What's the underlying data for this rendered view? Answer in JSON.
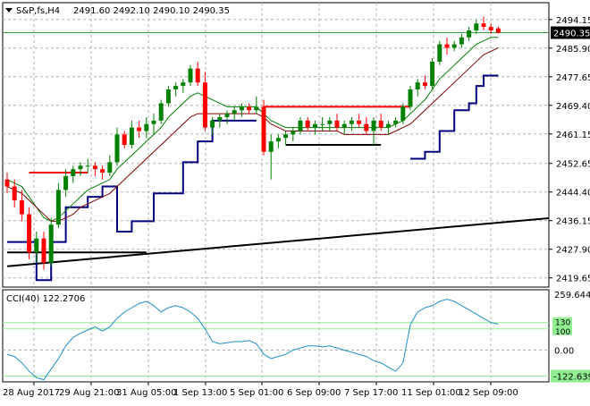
{
  "header": {
    "symbol": "S&P,fs,H4",
    "ohlc": "2491.60 2492.10 2490.10 2490.35"
  },
  "price_axis": {
    "ticks": [
      "2494.15",
      "2485.90",
      "2477.65",
      "2469.40",
      "2461.15",
      "2452.65",
      "2444.40",
      "2436.15",
      "2427.90",
      "2419.65"
    ],
    "current_price": "2490.35"
  },
  "cci_panel": {
    "label": "CCI(40) 122.2706",
    "ticks": [
      "259.6446",
      "0.00",
      "-122.6397"
    ],
    "level_labels": [
      "130",
      "100"
    ]
  },
  "time_axis": {
    "labels": [
      "28 Aug 2017",
      "29 Aug 21:00",
      "31 Aug 05:00",
      "1 Sep 13:00",
      "5 Sep 01:00",
      "6 Sep 09:00",
      "7 Sep 17:00",
      "11 Sep 01:00",
      "12 Sep 09:00"
    ]
  },
  "colors": {
    "bull": "#008000",
    "bear": "#ff0000",
    "ma_fast": "#008000",
    "ma_slow": "#800000",
    "stop_line": "#000080",
    "trend_line": "#000000",
    "resistance": "#ff0000",
    "support": "#000000",
    "cci": "#1e90c8",
    "levels": "#90ee90",
    "grid": "#b0b0b0"
  },
  "chart_data": [
    {
      "type": "candlestick",
      "title": "S&P,fs,H4",
      "ylim": [
        2417,
        2499
      ],
      "grid": true,
      "candles": [
        [
          2448,
          2450,
          2444,
          2446
        ],
        [
          2446,
          2448,
          2440,
          2442
        ],
        [
          2442,
          2445,
          2436,
          2438
        ],
        [
          2438,
          2440,
          2425,
          2427
        ],
        [
          2427,
          2433,
          2424,
          2431
        ],
        [
          2431,
          2433,
          2422,
          2424
        ],
        [
          2424,
          2437,
          2423,
          2435
        ],
        [
          2435,
          2447,
          2434,
          2445
        ],
        [
          2445,
          2451,
          2443,
          2449
        ],
        [
          2449,
          2452,
          2447,
          2451
        ],
        [
          2451,
          2453,
          2449,
          2452
        ],
        [
          2452,
          2454,
          2450,
          2452
        ],
        [
          2452,
          2453,
          2449,
          2451
        ],
        [
          2451,
          2452,
          2448,
          2450
        ],
        [
          2450,
          2455,
          2449,
          2453
        ],
        [
          2453,
          2463,
          2452,
          2461
        ],
        [
          2461,
          2462,
          2457,
          2458
        ],
        [
          2458,
          2465,
          2457,
          2463
        ],
        [
          2463,
          2465,
          2460,
          2462
        ],
        [
          2462,
          2466,
          2460,
          2464
        ],
        [
          2464,
          2467,
          2461,
          2465
        ],
        [
          2465,
          2471,
          2464,
          2470
        ],
        [
          2470,
          2475,
          2469,
          2474
        ],
        [
          2474,
          2476,
          2472,
          2475
        ],
        [
          2475,
          2477,
          2473,
          2476
        ],
        [
          2476,
          2481,
          2475,
          2480
        ],
        [
          2480,
          2482,
          2475,
          2476
        ],
        [
          2476,
          2479,
          2462,
          2463
        ],
        [
          2463,
          2466,
          2461,
          2465
        ],
        [
          2465,
          2467,
          2463,
          2466
        ],
        [
          2466,
          2468,
          2464,
          2467
        ],
        [
          2467,
          2469,
          2465,
          2468
        ],
        [
          2468,
          2470,
          2466,
          2469
        ],
        [
          2469,
          2470,
          2467,
          2468
        ],
        [
          2468,
          2472,
          2467,
          2469
        ],
        [
          2469,
          2471,
          2455,
          2456
        ],
        [
          2456,
          2461,
          2448,
          2459
        ],
        [
          2459,
          2461,
          2457,
          2460
        ],
        [
          2460,
          2462,
          2458,
          2461
        ],
        [
          2461,
          2463,
          2459,
          2462
        ],
        [
          2462,
          2466,
          2461,
          2465
        ],
        [
          2465,
          2466,
          2462,
          2463
        ],
        [
          2463,
          2465,
          2461,
          2464
        ],
        [
          2464,
          2466,
          2462,
          2464
        ],
        [
          2464,
          2466,
          2462,
          2465
        ],
        [
          2465,
          2467,
          2462,
          2463
        ],
        [
          2463,
          2465,
          2461,
          2464
        ],
        [
          2464,
          2466,
          2462,
          2465
        ],
        [
          2465,
          2467,
          2463,
          2464
        ],
        [
          2464,
          2466,
          2461,
          2462
        ],
        [
          2462,
          2466,
          2458,
          2465
        ],
        [
          2465,
          2467,
          2462,
          2463
        ],
        [
          2463,
          2465,
          2461,
          2464
        ],
        [
          2464,
          2466,
          2463,
          2465
        ],
        [
          2465,
          2470,
          2464,
          2469
        ],
        [
          2469,
          2475,
          2468,
          2474
        ],
        [
          2474,
          2477,
          2472,
          2476
        ],
        [
          2476,
          2478,
          2474,
          2475
        ],
        [
          2475,
          2483,
          2474,
          2482
        ],
        [
          2482,
          2488,
          2481,
          2487
        ],
        [
          2487,
          2489,
          2484,
          2486
        ],
        [
          2486,
          2488,
          2485,
          2487
        ],
        [
          2487,
          2490,
          2486,
          2489
        ],
        [
          2489,
          2492,
          2488,
          2491
        ],
        [
          2491,
          2494,
          2490,
          2493
        ],
        [
          2493,
          2495,
          2491,
          2492
        ],
        [
          2492,
          2493,
          2490,
          2491
        ],
        [
          2491.6,
          2492.1,
          2490.1,
          2490.35
        ]
      ],
      "series": [
        {
          "name": "",
          "kind": "ma_fast",
          "values": [
            2448,
            2447,
            2446,
            2443,
            2440,
            2437,
            2436,
            2437,
            2439,
            2441,
            2443,
            2445,
            2446,
            2447,
            2448,
            2451,
            2453,
            2455,
            2457,
            2459,
            2461,
            2463,
            2466,
            2468,
            2470,
            2472,
            2473,
            2472,
            2471,
            2470,
            2469,
            2469,
            2469,
            2469,
            2469,
            2467,
            2465,
            2464,
            2463,
            2463,
            2463,
            2463,
            2463,
            2463,
            2463,
            2463,
            2463,
            2463,
            2463,
            2463,
            2463,
            2463,
            2463,
            2464,
            2465,
            2467,
            2469,
            2471,
            2474,
            2477,
            2479,
            2481,
            2483,
            2485,
            2487,
            2488,
            2489,
            2489
          ]
        },
        {
          "name": "",
          "kind": "ma_slow",
          "values": [
            2446,
            2445,
            2444,
            2442,
            2440,
            2438,
            2436,
            2436,
            2437,
            2438,
            2440,
            2441,
            2442,
            2443,
            2444,
            2446,
            2448,
            2450,
            2452,
            2454,
            2456,
            2458,
            2460,
            2462,
            2464,
            2466,
            2467,
            2467,
            2467,
            2467,
            2467,
            2467,
            2467,
            2467,
            2467,
            2466,
            2464,
            2463,
            2462,
            2462,
            2462,
            2462,
            2462,
            2462,
            2462,
            2462,
            2461,
            2461,
            2461,
            2461,
            2461,
            2461,
            2461,
            2462,
            2463,
            2464,
            2466,
            2468,
            2470,
            2472,
            2474,
            2476,
            2478,
            2480,
            2482,
            2484,
            2485,
            2486
          ]
        }
      ],
      "stop_steps": [
        [
          0,
          2430
        ],
        [
          3,
          2430
        ],
        [
          4,
          2419
        ],
        [
          6,
          2430
        ],
        [
          8,
          2440
        ],
        [
          11,
          2443
        ],
        [
          13,
          2446
        ],
        [
          15,
          2433
        ],
        [
          17,
          2436
        ],
        [
          18,
          2436
        ],
        [
          20,
          2444
        ],
        [
          24,
          2453
        ],
        [
          26,
          2459
        ],
        [
          28,
          2465
        ],
        [
          32,
          2465
        ],
        [
          34,
          2465
        ]
      ],
      "stop_steps_2": [
        [
          55,
          2454
        ],
        [
          57,
          2456
        ],
        [
          59,
          2462
        ],
        [
          61,
          2468
        ],
        [
          63,
          2470
        ],
        [
          64,
          2475
        ],
        [
          65,
          2478
        ],
        [
          67,
          2478
        ]
      ],
      "resistance_levels": [
        {
          "from": 3,
          "to": 11,
          "value": 2450
        },
        {
          "from": 35,
          "to": 55,
          "value": 2469
        }
      ],
      "support_levels": [
        {
          "from": 0,
          "to": 19,
          "value": 2427
        },
        {
          "from": 38,
          "to": 51,
          "value": 2458
        }
      ],
      "trend_line": {
        "from": [
          0,
          2423
        ],
        "to": [
          80,
          2438
        ]
      }
    },
    {
      "type": "line",
      "title": "CCI(40) 122.2706",
      "ylim": [
        -150,
        285
      ],
      "levels": [
        130,
        100,
        0,
        -122.6397
      ],
      "series": [
        {
          "name": "",
          "values": [
            -20,
            -30,
            -60,
            -100,
            -130,
            -140,
            -90,
            -40,
            20,
            60,
            80,
            95,
            110,
            90,
            110,
            150,
            180,
            200,
            220,
            230,
            210,
            180,
            200,
            210,
            200,
            180,
            150,
            100,
            40,
            30,
            35,
            40,
            40,
            45,
            30,
            -20,
            -40,
            -30,
            -20,
            0,
            10,
            20,
            20,
            15,
            20,
            10,
            0,
            -10,
            -20,
            -30,
            -50,
            -60,
            -80,
            -100,
            -60,
            120,
            180,
            200,
            210,
            230,
            240,
            230,
            210,
            190,
            170,
            150,
            130,
            122.27
          ]
        }
      ]
    }
  ]
}
